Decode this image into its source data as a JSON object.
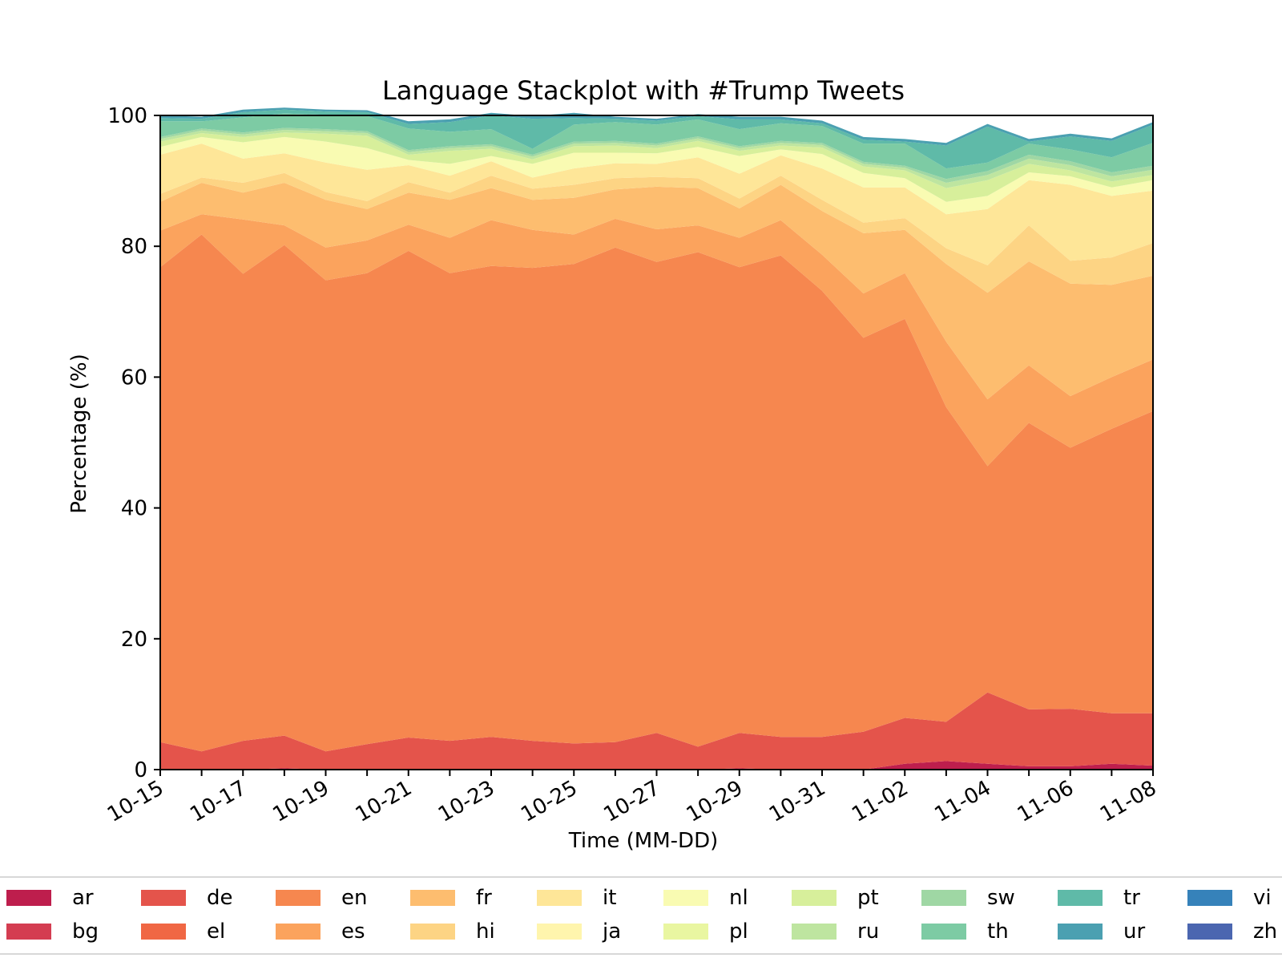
{
  "chart_data": {
    "type": "area",
    "title": "Language Stackplot with #Trump Tweets",
    "xlabel": "Time (MM-DD)",
    "ylabel": "Percentage (%)",
    "ylim": [
      0,
      100
    ],
    "yticks": [
      0,
      20,
      40,
      60,
      80,
      100
    ],
    "x": [
      "10-15",
      "10-16",
      "10-17",
      "10-18",
      "10-19",
      "10-20",
      "10-21",
      "10-22",
      "10-23",
      "10-24",
      "10-25",
      "10-26",
      "10-27",
      "10-28",
      "10-29",
      "10-30",
      "10-31",
      "11-01",
      "11-02",
      "11-03",
      "11-04",
      "11-05",
      "11-06",
      "11-07",
      "11-08"
    ],
    "xtick_labels": [
      "10-15",
      "10-17",
      "10-19",
      "10-21",
      "10-23",
      "10-25",
      "10-27",
      "10-29",
      "10-31",
      "11-02",
      "11-04",
      "11-06",
      "11-08"
    ],
    "grid": false,
    "legend_position": "bottom",
    "series": [
      {
        "name": "ar",
        "color": "#be1e4d",
        "values": [
          0,
          0,
          0,
          0.2,
          0,
          0,
          0,
          0,
          0,
          0,
          0,
          0,
          0,
          0,
          0.2,
          0,
          0,
          0,
          0.9,
          1.3,
          0.9,
          0.5,
          0.5,
          0.9,
          0.6
        ]
      },
      {
        "name": "bg",
        "color": "#d43d51",
        "values": [
          0,
          0,
          0,
          0,
          0,
          0,
          0,
          0,
          0,
          0,
          0,
          0,
          0,
          0,
          0,
          0,
          0,
          0,
          0,
          0,
          0,
          0,
          0,
          0,
          0
        ]
      },
      {
        "name": "de",
        "color": "#e4544b",
        "values": [
          4.2,
          2.8,
          4.4,
          5.0,
          2.8,
          3.9,
          4.9,
          4.4,
          5.0,
          4.4,
          4.0,
          4.2,
          5.6,
          3.5,
          5.4,
          5.0,
          5.0,
          5.8,
          7.0,
          6.0,
          10.9,
          8.7,
          8.8,
          7.7,
          8.0
        ]
      },
      {
        "name": "el",
        "color": "#f06744",
        "values": [
          0,
          0,
          0,
          0,
          0,
          0,
          0,
          0,
          0,
          0,
          0,
          0,
          0,
          0,
          0,
          0,
          0,
          0,
          0,
          0,
          0,
          0,
          0,
          0,
          0
        ]
      },
      {
        "name": "en",
        "color": "#f6874f",
        "values": [
          72.6,
          79.0,
          71.4,
          75.0,
          72.0,
          72.0,
          74.4,
          71.5,
          72.0,
          72.3,
          73.3,
          75.6,
          72.0,
          75.6,
          71.2,
          73.6,
          68.2,
          60.2,
          61.0,
          48.1,
          34.6,
          43.8,
          39.9,
          43.5,
          46.2
        ]
      },
      {
        "name": "es",
        "color": "#fba35d",
        "values": [
          5.6,
          3.1,
          8.3,
          3.0,
          5.0,
          5.0,
          4.0,
          5.4,
          7.0,
          5.8,
          4.5,
          4.4,
          5.0,
          4.1,
          4.5,
          5.4,
          5.5,
          6.8,
          7.0,
          10.0,
          10.2,
          8.8,
          7.9,
          7.9,
          7.9
        ]
      },
      {
        "name": "fr",
        "color": "#fdbd6f",
        "values": [
          4.4,
          4.8,
          4.1,
          6.5,
          7.3,
          4.8,
          4.9,
          5.8,
          4.9,
          4.6,
          5.6,
          4.5,
          6.5,
          5.7,
          4.5,
          5.4,
          6.7,
          9.2,
          6.6,
          11.9,
          16.3,
          15.9,
          17.2,
          14.1,
          12.8
        ]
      },
      {
        "name": "hi",
        "color": "#fdd484",
        "values": [
          1.2,
          0.8,
          1.5,
          1.5,
          1.2,
          1.2,
          1.6,
          1.1,
          1.9,
          1.7,
          2.0,
          1.7,
          1.5,
          1.5,
          1.5,
          1.4,
          1.7,
          1.6,
          1.8,
          2.4,
          4.2,
          5.5,
          3.5,
          4.2,
          5.0
        ]
      },
      {
        "name": "it",
        "color": "#fee698",
        "values": [
          6.0,
          5.2,
          3.7,
          3.0,
          4.5,
          4.8,
          2.6,
          2.6,
          2.2,
          1.7,
          2.5,
          2.3,
          2.0,
          3.2,
          3.8,
          3.1,
          4.8,
          5.4,
          4.7,
          5.2,
          8.6,
          6.9,
          11.6,
          9.4,
          8.0
        ]
      },
      {
        "name": "ja",
        "color": "#fff5ad",
        "values": [
          0,
          0,
          0,
          0,
          0,
          0,
          0,
          0,
          0,
          0,
          0,
          0,
          0,
          0,
          0,
          0,
          0,
          0,
          0,
          0,
          0,
          0,
          0,
          0,
          0
        ]
      },
      {
        "name": "nl",
        "color": "#f9fbb2",
        "values": [
          1.2,
          1.0,
          2.5,
          2.5,
          3.2,
          3.3,
          0.8,
          1.8,
          0.8,
          2.1,
          2.4,
          1.6,
          1.6,
          1.6,
          2.7,
          0.9,
          2.2,
          2.2,
          1.4,
          1.9,
          2.0,
          1.2,
          1.3,
          1.3,
          1.6
        ]
      },
      {
        "name": "pl",
        "color": "#e9f6a1",
        "values": [
          0,
          0,
          0,
          0,
          0,
          0,
          0,
          0,
          0,
          0,
          0,
          0,
          0,
          0,
          0,
          0,
          0,
          0,
          0,
          0,
          0,
          0,
          0,
          0,
          0
        ]
      },
      {
        "name": "pt",
        "color": "#d7ef9b",
        "values": [
          0.8,
          0.6,
          0.8,
          0.7,
          1.2,
          1.9,
          0.8,
          2.0,
          1.1,
          0.7,
          1.0,
          1.1,
          0.8,
          0.9,
          0.8,
          0.6,
          1.0,
          1.0,
          1.2,
          2.1,
          2.4,
          1.3,
          0.9,
          0.9,
          0.8
        ]
      },
      {
        "name": "ru",
        "color": "#bee5a0",
        "values": [
          0.4,
          0.4,
          0.4,
          0.4,
          0.4,
          0.4,
          0.4,
          0.4,
          0.4,
          0.4,
          0.4,
          0.4,
          0.4,
          0.4,
          0.4,
          0.4,
          0.4,
          0.4,
          0.4,
          0.8,
          0.8,
          0.8,
          0.8,
          0.8,
          0.8
        ]
      },
      {
        "name": "sw",
        "color": "#9fd7a4",
        "values": [
          0.3,
          0.3,
          0.3,
          0.3,
          0.3,
          0.3,
          0.3,
          0.3,
          0.3,
          0.3,
          0.3,
          0.3,
          0.3,
          0.3,
          0.3,
          0.3,
          0.3,
          0.3,
          0.3,
          0.6,
          0.6,
          0.6,
          0.6,
          0.6,
          0.6
        ]
      },
      {
        "name": "th",
        "color": "#7dcba4",
        "values": [
          2.4,
          1.1,
          2.3,
          2.2,
          2.2,
          2.3,
          3.3,
          2.2,
          2.3,
          0.9,
          2.6,
          2.9,
          2.9,
          2.6,
          2.6,
          2.7,
          2.6,
          2.8,
          3.4,
          1.6,
          1.3,
          1.7,
          1.8,
          2.3,
          3.5
        ]
      },
      {
        "name": "tr",
        "color": "#5fbaa8",
        "values": [
          0.5,
          0.4,
          0.8,
          0.6,
          0.5,
          0.6,
          0.7,
          1.5,
          2.1,
          4.6,
          1.0,
          0.5,
          0.6,
          0.5,
          1.5,
          0.6,
          0.4,
          0.6,
          0.3,
          3.5,
          5.5,
          0.3,
          2.0,
          2.5,
          2.8
        ]
      },
      {
        "name": "ur",
        "color": "#4ba0b1",
        "values": [
          0.4,
          0.3,
          0.4,
          0.3,
          0.3,
          0.3,
          0.4,
          0.4,
          0.4,
          0.4,
          0.8,
          0.3,
          0.3,
          0.3,
          0.4,
          0.4,
          0.4,
          0.4,
          0.4,
          0.4,
          0.4,
          0.4,
          0.4,
          0.4,
          0.4
        ]
      },
      {
        "name": "vi",
        "color": "#3682ba",
        "values": [
          0,
          0,
          0,
          0,
          0,
          0,
          0,
          0,
          0,
          0,
          0,
          0,
          0,
          0,
          0,
          0,
          0,
          0,
          0,
          0,
          0,
          0,
          0,
          0,
          0
        ]
      },
      {
        "name": "zh",
        "color": "#4b66b0",
        "values": [
          0,
          0,
          0,
          0,
          0,
          0,
          0,
          0,
          0,
          0,
          0,
          0,
          0,
          0,
          0,
          0,
          0,
          0,
          0,
          0,
          0,
          0,
          0,
          0,
          0
        ]
      }
    ]
  },
  "legend": {
    "items": [
      {
        "label": "ar",
        "color": "#be1e4d"
      },
      {
        "label": "bg",
        "color": "#d43d51"
      },
      {
        "label": "de",
        "color": "#e4544b"
      },
      {
        "label": "el",
        "color": "#f06744"
      },
      {
        "label": "en",
        "color": "#f6874f"
      },
      {
        "label": "es",
        "color": "#fba35d"
      },
      {
        "label": "fr",
        "color": "#fdbd6f"
      },
      {
        "label": "hi",
        "color": "#fdd484"
      },
      {
        "label": "it",
        "color": "#fee698"
      },
      {
        "label": "ja",
        "color": "#fff5ad"
      },
      {
        "label": "nl",
        "color": "#f9fbb2"
      },
      {
        "label": "pl",
        "color": "#e9f6a1"
      },
      {
        "label": "pt",
        "color": "#d7ef9b"
      },
      {
        "label": "ru",
        "color": "#bee5a0"
      },
      {
        "label": "sw",
        "color": "#9fd7a4"
      },
      {
        "label": "th",
        "color": "#7dcba4"
      },
      {
        "label": "tr",
        "color": "#5fbaa8"
      },
      {
        "label": "ur",
        "color": "#4ba0b1"
      },
      {
        "label": "vi",
        "color": "#3682ba"
      },
      {
        "label": "zh",
        "color": "#4b66b0"
      }
    ]
  }
}
